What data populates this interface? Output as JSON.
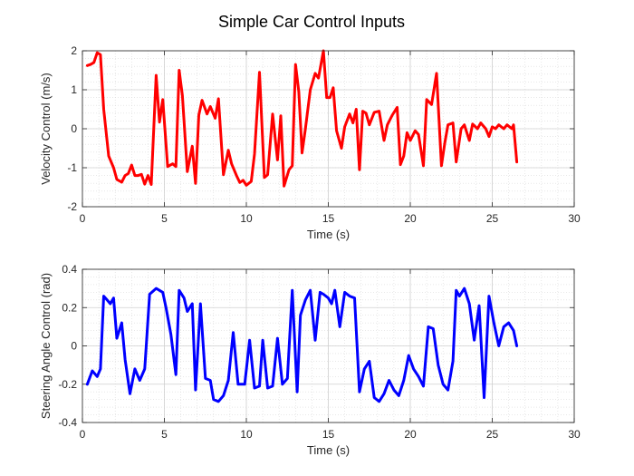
{
  "title": "Simple Car Control Inputs",
  "chart_data": [
    {
      "type": "line",
      "xlabel": "Time (s)",
      "ylabel": "Velocity Control (m/s)",
      "xlim": [
        0,
        30
      ],
      "ylim": [
        -2,
        2
      ],
      "xticks": [
        "0",
        "5",
        "10",
        "15",
        "20",
        "25",
        "30"
      ],
      "yticks": [
        "-2",
        "-1",
        "0",
        "1",
        "2"
      ],
      "grid": true,
      "minor_grid": true,
      "series": [
        {
          "color": "#ff0000",
          "x": [
            0.3,
            0.5,
            0.7,
            0.9,
            1.1,
            1.3,
            1.6,
            1.9,
            2.1,
            2.4,
            2.6,
            2.8,
            3.0,
            3.2,
            3.4,
            3.6,
            3.8,
            4.0,
            4.2,
            4.5,
            4.7,
            4.9,
            5.2,
            5.5,
            5.7,
            5.9,
            6.1,
            6.4,
            6.7,
            6.9,
            7.1,
            7.3,
            7.6,
            7.8,
            8.1,
            8.3,
            8.6,
            8.9,
            9.1,
            9.4,
            9.6,
            9.8,
            10.0,
            10.3,
            10.5,
            10.8,
            11.1,
            11.3,
            11.6,
            11.9,
            12.1,
            12.3,
            12.6,
            12.8,
            13.0,
            13.2,
            13.4,
            13.6,
            13.9,
            14.2,
            14.4,
            14.7,
            14.9,
            15.1,
            15.3,
            15.5,
            15.8,
            16.0,
            16.3,
            16.5,
            16.7,
            16.9,
            17.1,
            17.3,
            17.5,
            17.8,
            18.1,
            18.4,
            18.6,
            18.9,
            19.2,
            19.4,
            19.6,
            19.8,
            20.0,
            20.3,
            20.5,
            20.8,
            21.0,
            21.3,
            21.6,
            21.9,
            22.1,
            22.3,
            22.6,
            22.8,
            23.1,
            23.3,
            23.6,
            23.8,
            24.1,
            24.3,
            24.6,
            24.8,
            25.0,
            25.2,
            25.4,
            25.7,
            25.9,
            26.2,
            26.3,
            26.5
          ],
          "y": [
            1.62,
            1.65,
            1.7,
            1.95,
            1.9,
            0.5,
            -0.7,
            -1.0,
            -1.3,
            -1.37,
            -1.2,
            -1.15,
            -0.93,
            -1.2,
            -1.2,
            -1.17,
            -1.42,
            -1.2,
            -1.43,
            1.37,
            0.17,
            0.75,
            -0.97,
            -0.9,
            -0.97,
            1.5,
            0.85,
            -1.1,
            -0.45,
            -1.4,
            0.35,
            0.73,
            0.38,
            0.57,
            0.27,
            0.77,
            -1.18,
            -0.55,
            -0.9,
            -1.2,
            -1.38,
            -1.32,
            -1.45,
            -1.35,
            -0.65,
            1.45,
            -1.25,
            -1.18,
            0.38,
            -0.8,
            0.33,
            -1.47,
            -1.05,
            -0.95,
            1.65,
            0.95,
            -0.62,
            0.0,
            1.0,
            1.42,
            1.3,
            2.0,
            0.8,
            0.8,
            1.05,
            -0.05,
            -0.5,
            0.05,
            0.38,
            0.15,
            0.5,
            -1.05,
            0.45,
            0.4,
            0.1,
            0.42,
            0.45,
            -0.3,
            0.1,
            0.35,
            0.55,
            -0.92,
            -0.7,
            -0.1,
            -0.3,
            -0.05,
            -0.15,
            -0.95,
            0.75,
            0.62,
            1.42,
            -0.95,
            -0.38,
            0.1,
            0.15,
            -0.85,
            0.0,
            0.1,
            -0.3,
            0.12,
            0.0,
            0.15,
            0.0,
            -0.2,
            0.05,
            0.0,
            0.1,
            0.0,
            0.1,
            0.0,
            0.1,
            -0.85
          ]
        }
      ]
    },
    {
      "type": "line",
      "xlabel": "Time (s)",
      "ylabel": "Steering Angle Control (rad)",
      "xlim": [
        0,
        30
      ],
      "ylim": [
        -0.4,
        0.4
      ],
      "xticks": [
        "0",
        "5",
        "10",
        "15",
        "20",
        "25",
        "30"
      ],
      "yticks": [
        "-0.4",
        "-0.2",
        "0",
        "0.2",
        "0.4"
      ],
      "grid": true,
      "minor_grid": true,
      "series": [
        {
          "color": "#0000ff",
          "x": [
            0.3,
            0.6,
            0.9,
            1.1,
            1.3,
            1.5,
            1.7,
            1.9,
            2.1,
            2.4,
            2.6,
            2.9,
            3.2,
            3.5,
            3.8,
            4.1,
            4.5,
            4.9,
            5.1,
            5.4,
            5.7,
            5.9,
            6.2,
            6.4,
            6.7,
            6.9,
            7.2,
            7.5,
            7.8,
            8.0,
            8.3,
            8.6,
            8.9,
            9.2,
            9.5,
            9.9,
            10.2,
            10.5,
            10.8,
            11.0,
            11.3,
            11.6,
            11.9,
            12.2,
            12.5,
            12.8,
            13.1,
            13.3,
            13.6,
            13.9,
            14.2,
            14.5,
            14.7,
            15.0,
            15.2,
            15.4,
            15.7,
            16.0,
            16.3,
            16.6,
            16.9,
            17.2,
            17.5,
            17.8,
            18.1,
            18.4,
            18.7,
            19.0,
            19.3,
            19.6,
            19.9,
            20.2,
            20.5,
            20.8,
            21.1,
            21.4,
            21.7,
            22.0,
            22.3,
            22.6,
            22.8,
            23.0,
            23.3,
            23.6,
            23.9,
            24.2,
            24.5,
            24.8,
            25.1,
            25.4,
            25.7,
            26.0,
            26.3,
            26.5
          ],
          "y": [
            -0.2,
            -0.13,
            -0.16,
            -0.12,
            0.26,
            0.24,
            0.22,
            0.25,
            0.04,
            0.12,
            -0.07,
            -0.25,
            -0.12,
            -0.18,
            -0.12,
            0.27,
            0.3,
            0.28,
            0.2,
            0.06,
            -0.15,
            0.29,
            0.25,
            0.18,
            0.22,
            -0.23,
            0.22,
            -0.17,
            -0.18,
            -0.28,
            -0.29,
            -0.26,
            -0.18,
            0.07,
            -0.2,
            -0.2,
            0.03,
            -0.22,
            -0.21,
            0.03,
            -0.22,
            -0.21,
            0.04,
            -0.2,
            -0.17,
            0.29,
            -0.24,
            0.16,
            0.24,
            0.29,
            0.03,
            0.28,
            0.27,
            0.25,
            0.22,
            0.29,
            0.1,
            0.28,
            0.26,
            0.25,
            -0.24,
            -0.12,
            -0.08,
            -0.27,
            -0.29,
            -0.25,
            -0.18,
            -0.23,
            -0.26,
            -0.18,
            -0.05,
            -0.12,
            -0.16,
            -0.21,
            0.1,
            0.09,
            -0.1,
            -0.2,
            -0.23,
            -0.08,
            0.29,
            0.26,
            0.3,
            0.22,
            0.03,
            0.21,
            -0.27,
            0.26,
            0.12,
            0.0,
            0.1,
            0.12,
            0.08,
            0.0
          ]
        }
      ]
    }
  ]
}
